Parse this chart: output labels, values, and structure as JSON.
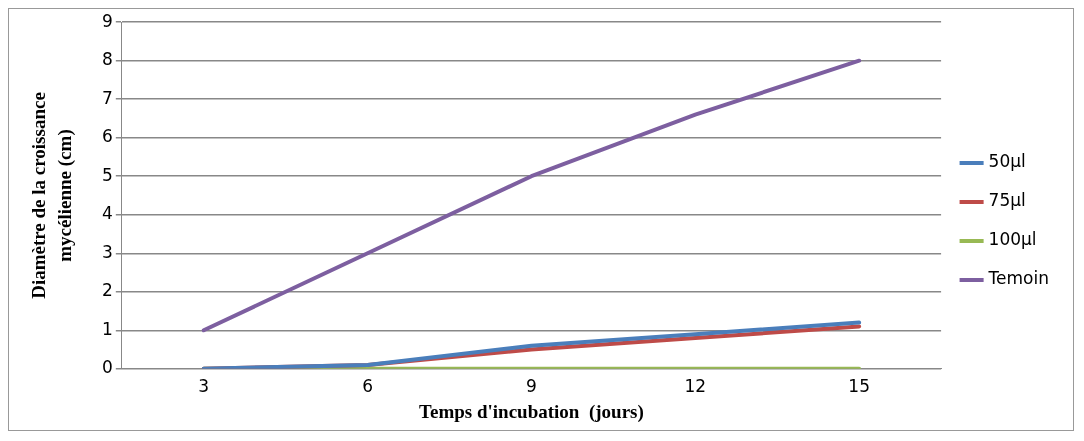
{
  "chart_data": {
    "type": "line",
    "xlabel": "Temps d'incubation  (jours)",
    "ylabel": "Diamètre de la croissance mycélienne (cm)",
    "categories": [
      "3",
      "6",
      "9",
      "12",
      "15"
    ],
    "series": [
      {
        "name": "50µl",
        "color": "#4a7ebb",
        "values": [
          0,
          0.1,
          0.6,
          0.9,
          1.2
        ]
      },
      {
        "name": "75µl",
        "color": "#be4b48",
        "values": [
          0,
          0.1,
          0.5,
          0.8,
          1.1
        ]
      },
      {
        "name": "100µl",
        "color": "#98b954",
        "values": [
          0,
          0,
          0,
          0,
          0
        ]
      },
      {
        "name": "Temoin",
        "color": "#7d5fa0",
        "values": [
          1,
          3,
          5,
          6.6,
          8
        ]
      }
    ],
    "ylim": [
      0,
      9
    ],
    "yticks": [
      0,
      1,
      2,
      3,
      4,
      5,
      6,
      7,
      8,
      9
    ],
    "grid": "y",
    "legend": "right",
    "marker": "none"
  }
}
